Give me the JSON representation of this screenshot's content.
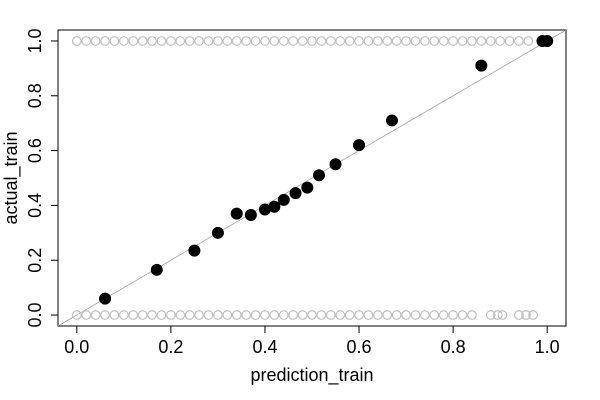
{
  "chart_data": {
    "type": "scatter",
    "x_label": "prediction_train",
    "y_label": "actual_train",
    "xlim": [
      -0.04,
      1.04
    ],
    "ylim": [
      -0.04,
      1.04
    ],
    "xticks": [
      {
        "value": 0,
        "label": "0.0"
      },
      0.2,
      0.4,
      0.6,
      0.8,
      {
        "value": 1,
        "label": "1.0"
      }
    ],
    "yticks": [
      {
        "value": 0,
        "label": "0.0"
      },
      0.2,
      0.4,
      0.6,
      0.8,
      {
        "value": 1,
        "label": "1.0"
      }
    ],
    "reference_line": {
      "intercept": 0,
      "slope": 1,
      "color": "#a0a0a0"
    },
    "series": [
      {
        "color": "#bebebe",
        "filled": false,
        "x": [
          0,
          0.02,
          0.04,
          0.06,
          0.08,
          0.1,
          0.12,
          0.14,
          0.16,
          0.18,
          0.2,
          0.22,
          0.24,
          0.26,
          0.28,
          0.3,
          0.32,
          0.34,
          0.36,
          0.38,
          0.4,
          0.42,
          0.44,
          0.46,
          0.48,
          0.5,
          0.52,
          0.54,
          0.56,
          0.58,
          0.6,
          0.62,
          0.64,
          0.66,
          0.68,
          0.7,
          0.72,
          0.74,
          0.76,
          0.78,
          0.8,
          0.82,
          0.84,
          0.86,
          0.88,
          0.9,
          0.92,
          0.94,
          0.96
        ],
        "values": [
          1,
          1,
          1,
          1,
          1,
          1,
          1,
          1,
          1,
          1,
          1,
          1,
          1,
          1,
          1,
          1,
          1,
          1,
          1,
          1,
          1,
          1,
          1,
          1,
          1,
          1,
          1,
          1,
          1,
          1,
          1,
          1,
          1,
          1,
          1,
          1,
          1,
          1,
          1,
          1,
          1,
          1,
          1,
          1,
          1,
          1,
          1,
          1,
          1
        ]
      },
      {
        "color": "#bebebe",
        "filled": false,
        "x": [
          0,
          0.02,
          0.04,
          0.06,
          0.08,
          0.1,
          0.12,
          0.14,
          0.16,
          0.18,
          0.2,
          0.22,
          0.24,
          0.26,
          0.28,
          0.3,
          0.32,
          0.34,
          0.36,
          0.38,
          0.4,
          0.42,
          0.44,
          0.46,
          0.48,
          0.5,
          0.52,
          0.54,
          0.56,
          0.58,
          0.6,
          0.62,
          0.64,
          0.66,
          0.68,
          0.7,
          0.72,
          0.74,
          0.76,
          0.78,
          0.8,
          0.82,
          0.84,
          0.88,
          0.895,
          0.905,
          0.94,
          0.955,
          0.97
        ],
        "values": [
          0,
          0,
          0,
          0,
          0,
          0,
          0,
          0,
          0,
          0,
          0,
          0,
          0,
          0,
          0,
          0,
          0,
          0,
          0,
          0,
          0,
          0,
          0,
          0,
          0,
          0,
          0,
          0,
          0,
          0,
          0,
          0,
          0,
          0,
          0,
          0,
          0,
          0,
          0,
          0,
          0,
          0,
          0,
          0,
          0,
          0,
          0,
          0,
          0
        ]
      },
      {
        "color": "#000000",
        "filled": true,
        "x": [
          0.06,
          0.17,
          0.25,
          0.3,
          0.34,
          0.37,
          0.4,
          0.42,
          0.44,
          0.465,
          0.49,
          0.515,
          0.55,
          0.6,
          0.67,
          0.86,
          0.99,
          1.0
        ],
        "values": [
          0.06,
          0.165,
          0.235,
          0.3,
          0.37,
          0.365,
          0.385,
          0.395,
          0.42,
          0.445,
          0.465,
          0.51,
          0.55,
          0.62,
          0.71,
          0.91,
          1.0,
          1.0
        ]
      }
    ]
  }
}
